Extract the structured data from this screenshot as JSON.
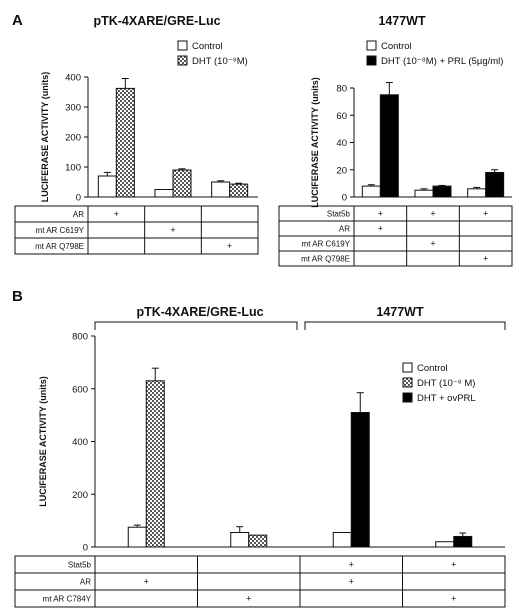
{
  "chart_data": [
    {
      "panel": "A",
      "type": "bar",
      "title": "pTK-4XARE/GRE-Luc",
      "ylabel": "LUCIFERASE ACTIVITY (units)",
      "ylim": [
        0,
        400
      ],
      "yticks": [
        "0",
        "100",
        "200",
        "300",
        "400"
      ],
      "legend": [
        "Control",
        "DHT (10⁻⁸M)"
      ],
      "categories": [
        "AR",
        "mt AR C619Y",
        "mt AR Q798E"
      ],
      "series": [
        {
          "name": "Control",
          "values": [
            70,
            25,
            50
          ],
          "errors": [
            12,
            0,
            4
          ],
          "fill": "white"
        },
        {
          "name": "DHT (10⁻⁸M)",
          "values": [
            362,
            90,
            43
          ],
          "errors": [
            33,
            4,
            3
          ],
          "fill": "checker"
        }
      ],
      "table": {
        "rows": [
          {
            "label": "AR",
            "marks": [
              "+",
              "",
              ""
            ]
          },
          {
            "label": "mt AR C619Y",
            "marks": [
              "",
              "+",
              ""
            ]
          },
          {
            "label": "mt AR Q798E",
            "marks": [
              "",
              "",
              "+"
            ]
          }
        ]
      }
    },
    {
      "panel": "",
      "type": "bar",
      "title": "1477WT",
      "ylabel": "LUCIFERASE ACTIVITY (units)",
      "ylim": [
        0,
        80
      ],
      "yticks": [
        "0",
        "20",
        "40",
        "60",
        "80"
      ],
      "legend": [
        "Control",
        "DHT (10⁻⁸M) + PRL (5µg/ml)"
      ],
      "categories": [
        "Stat5b + AR",
        "Stat5b + mt AR C619Y",
        "Stat5b + mt AR Q798E"
      ],
      "series": [
        {
          "name": "Control",
          "values": [
            8,
            5,
            6
          ],
          "errors": [
            1,
            1,
            1
          ],
          "fill": "white"
        },
        {
          "name": "DHT (10⁻⁸M) + PRL (5µg/ml)",
          "values": [
            75,
            8,
            18
          ],
          "errors": [
            9,
            0.5,
            2
          ],
          "fill": "black"
        }
      ],
      "table": {
        "rows": [
          {
            "label": "Stat5b",
            "marks": [
              "+",
              "+",
              "+"
            ]
          },
          {
            "label": "AR",
            "marks": [
              "+",
              "",
              ""
            ]
          },
          {
            "label": "mt AR C619Y",
            "marks": [
              "",
              "+",
              ""
            ]
          },
          {
            "label": "mt AR Q798E",
            "marks": [
              "",
              "",
              "+"
            ]
          }
        ]
      }
    },
    {
      "panel": "B",
      "type": "bar",
      "titles": [
        "pTK-4XARE/GRE-Luc",
        "1477WT"
      ],
      "ylabel": "LUCIFERASE ACTIVITY (units)",
      "ylim": [
        0,
        800
      ],
      "yticks": [
        "0",
        "200",
        "400",
        "600",
        "800"
      ],
      "legend": [
        "Control",
        "DHT (10⁻⁸ M)",
        "DHT + ovPRL"
      ],
      "categories": [
        "AR",
        "mt AR C784Y",
        "Stat5b + AR",
        "Stat5b + mt AR C784Y"
      ],
      "series": [
        {
          "name": "Control",
          "values": [
            75,
            55,
            55,
            20
          ],
          "errors": [
            8,
            22,
            0,
            0
          ]
        },
        {
          "name": "DHT (10⁻⁸ M)",
          "values": [
            630,
            45,
            null,
            null
          ],
          "errors": [
            48,
            0,
            null,
            null
          ]
        },
        {
          "name": "DHT + ovPRL",
          "values": [
            null,
            null,
            510,
            40
          ],
          "errors": [
            null,
            null,
            75,
            13
          ]
        }
      ],
      "table": {
        "rows": [
          {
            "label": "Stat5b",
            "marks": [
              "",
              "",
              "+",
              "+"
            ]
          },
          {
            "label": "AR",
            "marks": [
              "+",
              "",
              "+",
              ""
            ]
          },
          {
            "label": "mt AR C784Y",
            "marks": [
              "",
              "+",
              "",
              "+"
            ]
          }
        ]
      }
    }
  ]
}
